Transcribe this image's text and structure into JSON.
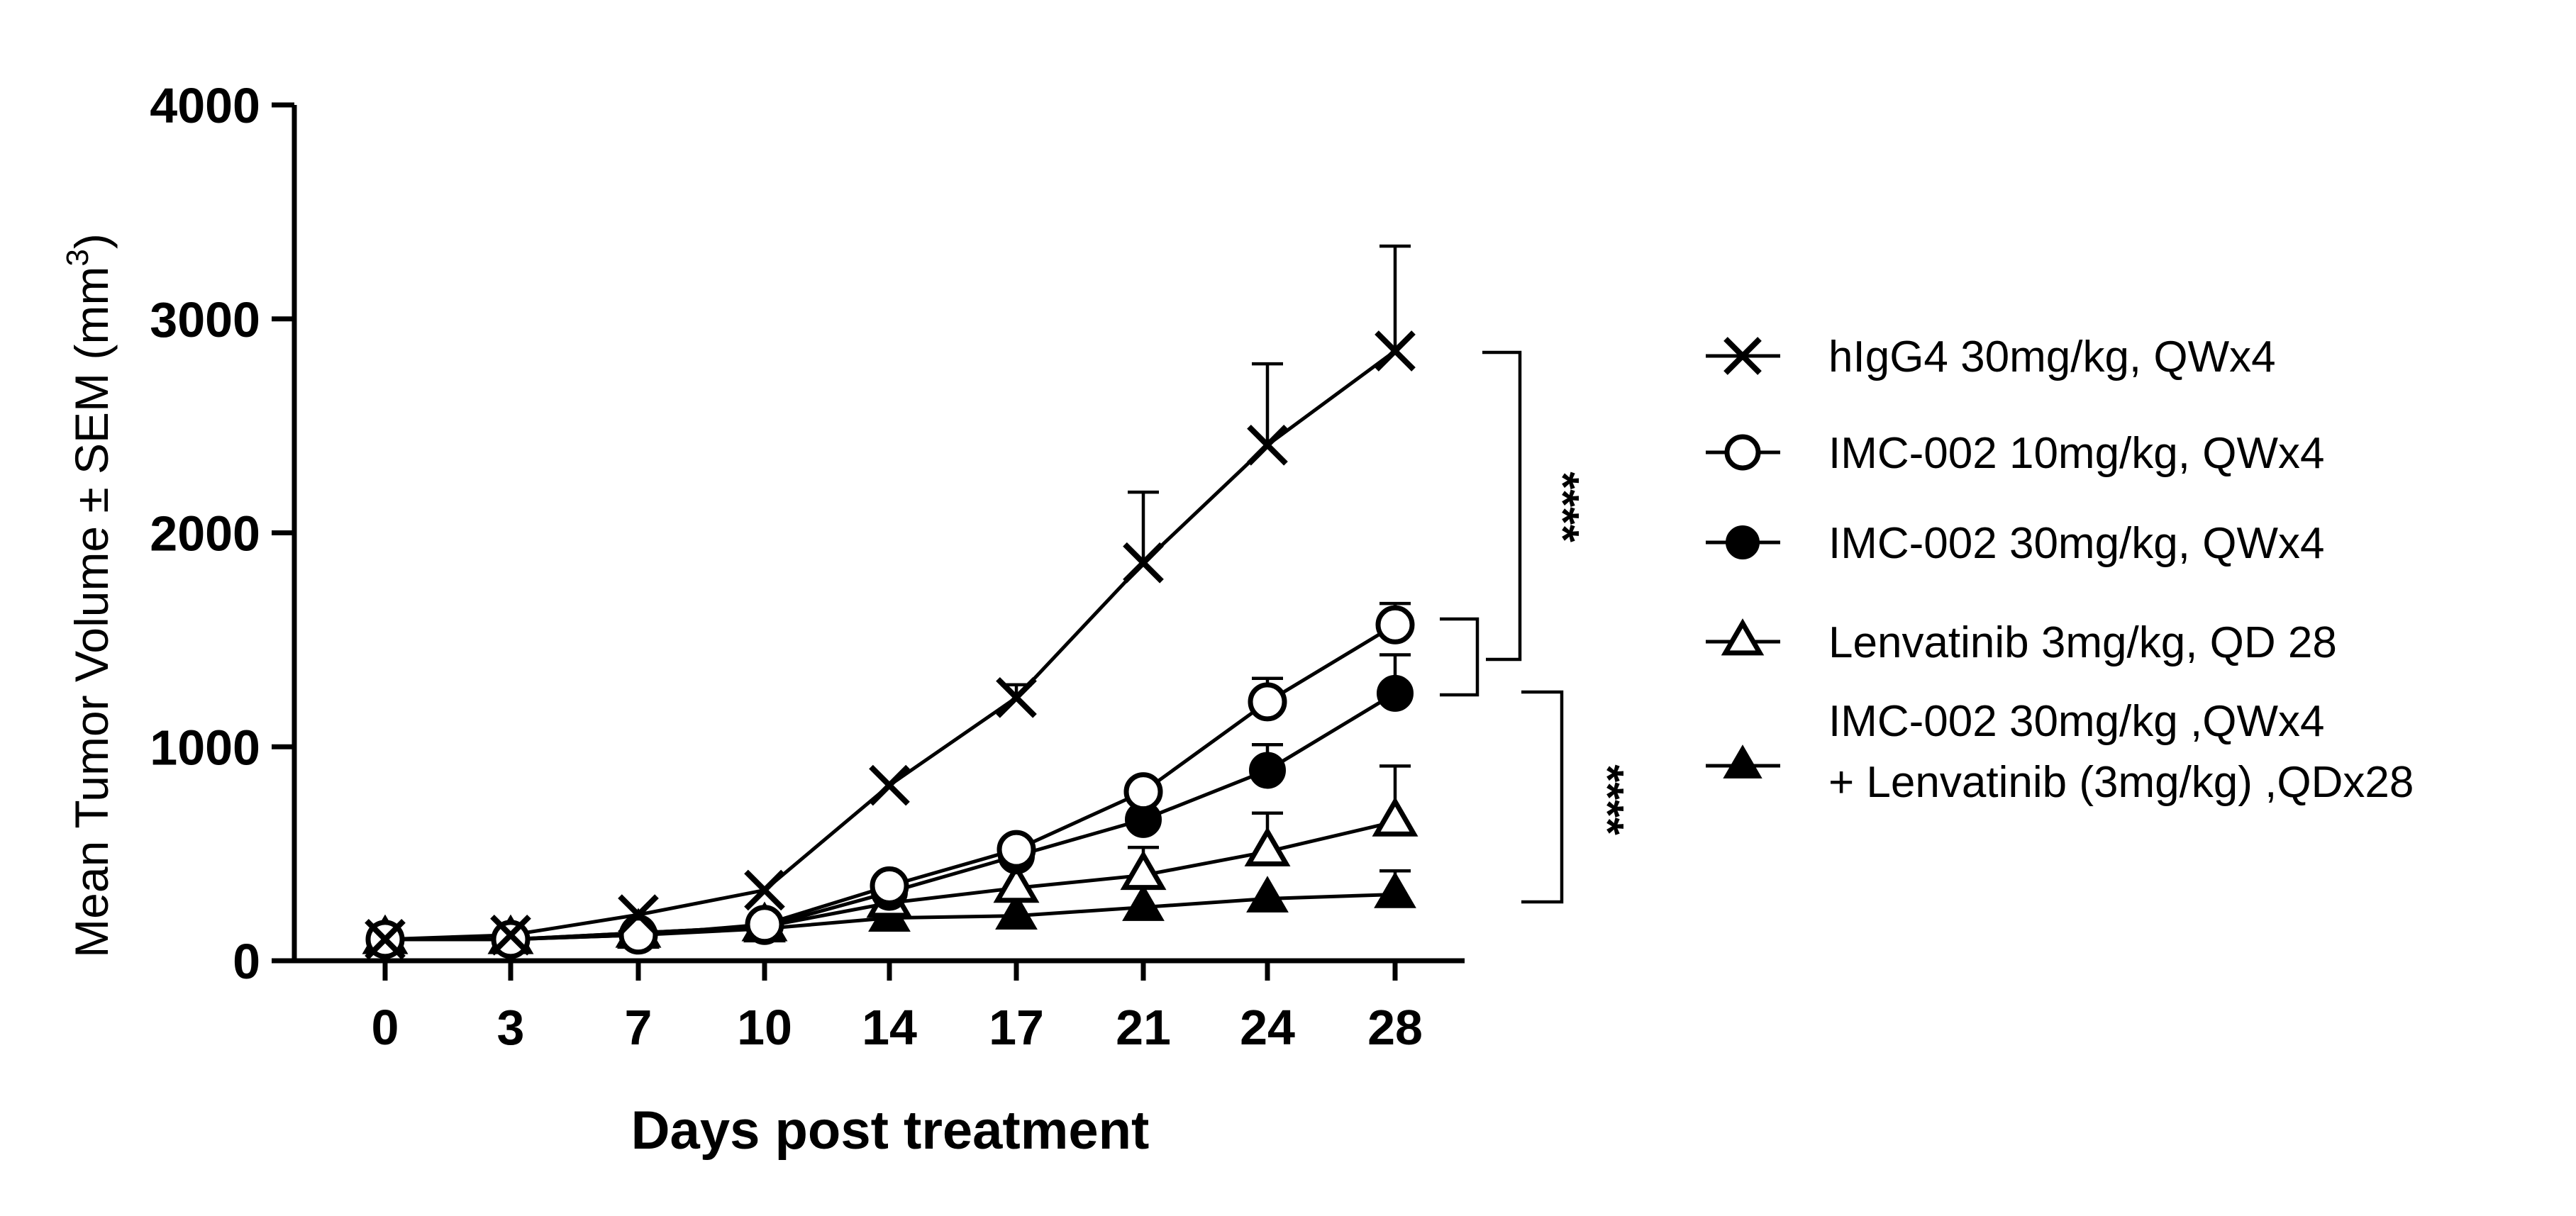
{
  "chart_data": {
    "type": "line",
    "xlabel": "Days post treatment",
    "ylabel_main": "Mean Tumor Volume ± SEM (mm",
    "ylabel_sup": "3",
    "ylabel_close": ")",
    "ylim": [
      0,
      4000
    ],
    "y_ticks": [
      0,
      1000,
      2000,
      3000,
      4000
    ],
    "x_categories": [
      "0",
      "3",
      "7",
      "10",
      "14",
      "17",
      "21",
      "24",
      "28"
    ],
    "grid": false,
    "legend_position": "right",
    "series": [
      {
        "name": "hIgG4 30mg/kg, QWx4",
        "marker": "x",
        "values": [
          100,
          120,
          215,
          330,
          820,
          1230,
          1860,
          2410,
          2850
        ],
        "sem": [
          0,
          0,
          0,
          0,
          0,
          60,
          330,
          380,
          490
        ]
      },
      {
        "name": "IMC-002 10mg/kg, QWx4",
        "marker": "open-circle",
        "values": [
          100,
          100,
          120,
          170,
          350,
          520,
          790,
          1210,
          1570
        ],
        "sem": [
          0,
          0,
          0,
          0,
          0,
          0,
          30,
          110,
          100
        ]
      },
      {
        "name": "IMC-002 30mg/kg, QWx4",
        "marker": "filled-circle",
        "values": [
          100,
          100,
          130,
          160,
          320,
          490,
          660,
          890,
          1250
        ],
        "sem": [
          0,
          0,
          0,
          0,
          0,
          0,
          0,
          120,
          180
        ]
      },
      {
        "name": "Lenvatinib 3mg/kg, QD 28",
        "marker": "open-triangle",
        "values": [
          100,
          100,
          130,
          160,
          270,
          340,
          400,
          510,
          650
        ],
        "sem": [
          0,
          0,
          0,
          0,
          0,
          0,
          130,
          180,
          260
        ]
      },
      {
        "name_line1": "IMC-002 30mg/kg ,QWx4",
        "name_line2": "+ Lenvatinib (3mg/kg) ,QDx28",
        "marker": "filled-triangle",
        "values": [
          100,
          100,
          120,
          150,
          200,
          210,
          250,
          290,
          310
        ],
        "sem": [
          0,
          0,
          0,
          0,
          0,
          0,
          0,
          0,
          110
        ]
      }
    ],
    "annotations": [
      {
        "text": "****"
      },
      {
        "text": "****"
      }
    ]
  }
}
